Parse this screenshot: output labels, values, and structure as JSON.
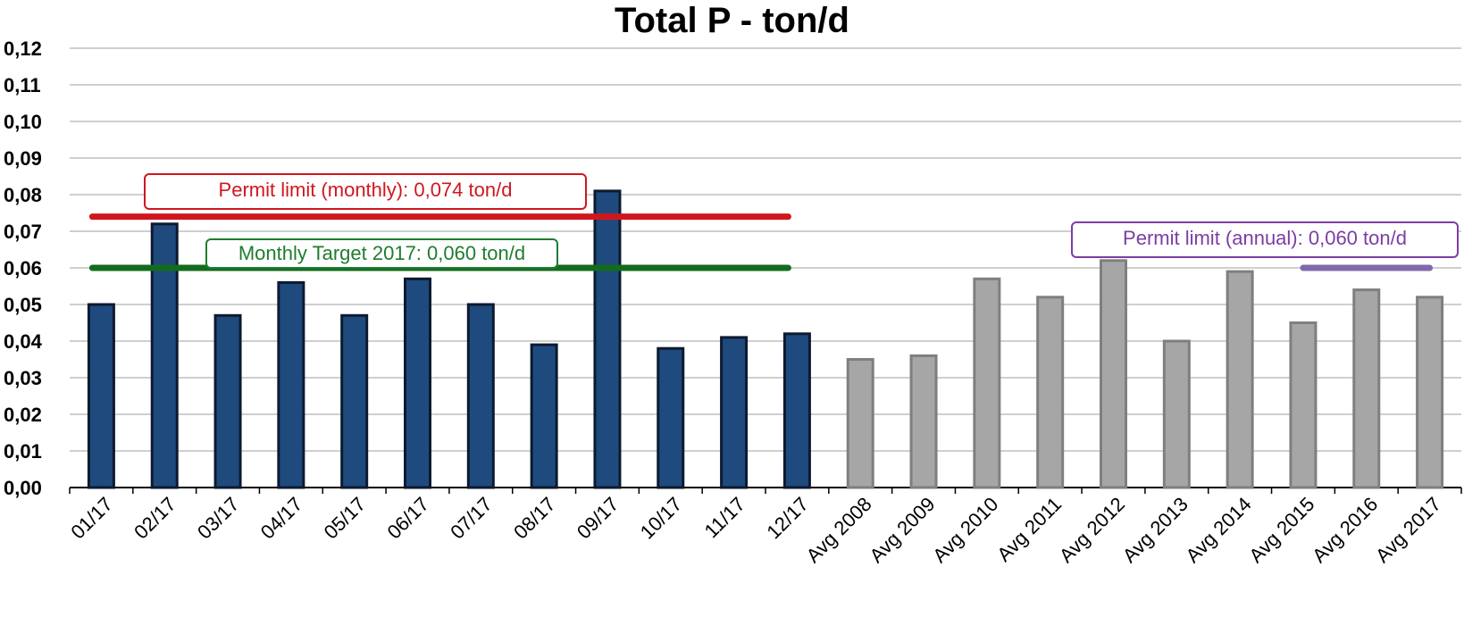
{
  "chart_data": {
    "type": "bar",
    "title": "Total P - ton/d",
    "xlabel": "",
    "ylabel": "",
    "ylim": [
      0,
      0.12
    ],
    "y_ticks": [
      "0,00",
      "0,01",
      "0,02",
      "0,03",
      "0,04",
      "0,05",
      "0,06",
      "0,07",
      "0,08",
      "0,09",
      "0,10",
      "0,11",
      "0,12"
    ],
    "grid": "horizontal",
    "categories": [
      "01/17",
      "02/17",
      "03/17",
      "04/17",
      "05/17",
      "06/17",
      "07/17",
      "08/17",
      "09/17",
      "10/17",
      "11/17",
      "12/17",
      "Avg 2008",
      "Avg 2009",
      "Avg 2010",
      "Avg 2011",
      "Avg 2012",
      "Avg 2013",
      "Avg 2014",
      "Avg 2015",
      "Avg 2016",
      "Avg 2017"
    ],
    "values": [
      0.05,
      0.072,
      0.047,
      0.056,
      0.047,
      0.057,
      0.05,
      0.039,
      0.081,
      0.038,
      0.041,
      0.042,
      0.035,
      0.036,
      0.057,
      0.052,
      0.062,
      0.04,
      0.059,
      0.045,
      0.054,
      0.052
    ],
    "colors": {
      "monthly_fill": "#1f4a7e",
      "monthly_edge": "#0d1a30",
      "annual_fill": "#a6a6a6",
      "annual_edge": "#7f7f7f",
      "grid": "#bfbfbf",
      "permit_monthly": "#d0171e",
      "target": "#136b1e",
      "permit_annual": "#7f6aad"
    },
    "reference_lines": [
      {
        "label": "Permit limit (monthly): 0,074 ton/d",
        "value": 0.074,
        "from": "01/17",
        "to": "12/17",
        "color": "#d0171e"
      },
      {
        "label": "Monthly Target 2017: 0,060 ton/d",
        "value": 0.06,
        "from": "01/17",
        "to": "12/17",
        "color": "#136b1e"
      },
      {
        "label": "Permit limit (annual): 0,060 ton/d",
        "value": 0.06,
        "from": "Avg 2015",
        "to": "Avg 2017",
        "color": "#7f6aad"
      }
    ]
  }
}
